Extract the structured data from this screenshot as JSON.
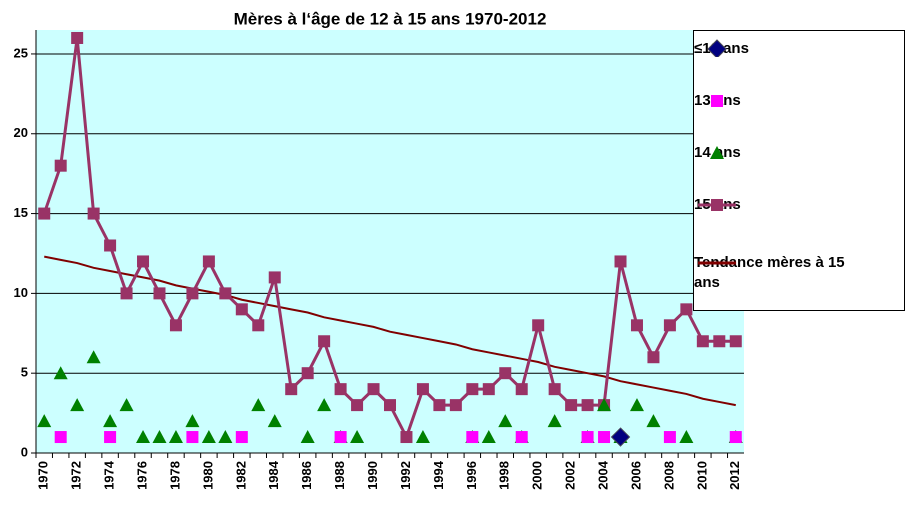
{
  "chart_data": {
    "type": "line",
    "title": "Mères à l‘âge de 12 à 15 ans 1970-2012",
    "categories": [
      "1970",
      null,
      "1972",
      null,
      "1974",
      null,
      "1976",
      null,
      "1978",
      null,
      "1980",
      null,
      "1982",
      null,
      "1984",
      null,
      "1986",
      null,
      "1988",
      null,
      "1990",
      null,
      "1992",
      null,
      "1994",
      null,
      "1996",
      null,
      "1998",
      null,
      "2000",
      null,
      "2002",
      null,
      "2004",
      null,
      "2006",
      null,
      "2008",
      null,
      "2010",
      null,
      "2012"
    ],
    "ylim": [
      0,
      26.5
    ],
    "yticks": [
      0,
      5,
      10,
      15,
      20,
      25
    ],
    "grid": true,
    "background": "#ccffff",
    "legend": "right",
    "series": [
      {
        "name": "≤12 ans",
        "color": "#000080",
        "marker": "diamond",
        "line": false,
        "values": [
          null,
          null,
          null,
          null,
          null,
          null,
          null,
          null,
          null,
          null,
          null,
          null,
          null,
          null,
          null,
          null,
          null,
          null,
          null,
          null,
          null,
          null,
          null,
          null,
          null,
          null,
          null,
          null,
          null,
          null,
          null,
          null,
          null,
          null,
          null,
          1,
          null,
          null,
          null,
          null,
          null,
          null,
          null
        ]
      },
      {
        "name": "13 ans",
        "color": "#ff00ff",
        "marker": "square",
        "line": false,
        "values": [
          null,
          1,
          null,
          null,
          1,
          null,
          null,
          null,
          null,
          1,
          null,
          null,
          1,
          null,
          null,
          null,
          null,
          null,
          1,
          null,
          null,
          null,
          null,
          null,
          null,
          null,
          1,
          null,
          null,
          1,
          null,
          null,
          null,
          1,
          1,
          null,
          null,
          null,
          1,
          null,
          null,
          null,
          1
        ]
      },
      {
        "name": "14 ans",
        "color": "#008000",
        "marker": "triangle",
        "line": false,
        "values": [
          2,
          5,
          3,
          6,
          2,
          3,
          1,
          1,
          1,
          2,
          1,
          1,
          null,
          3,
          2,
          null,
          1,
          3,
          1,
          1,
          null,
          null,
          null,
          1,
          null,
          null,
          1,
          1,
          2,
          1,
          null,
          2,
          null,
          1,
          3,
          1,
          3,
          2,
          null,
          1,
          null,
          null,
          1
        ]
      },
      {
        "name": "15 ans",
        "color": "#993366",
        "marker": "square",
        "line": true,
        "values": [
          15,
          18,
          26,
          15,
          13,
          10,
          12,
          10,
          8,
          10,
          12,
          10,
          9,
          8,
          11,
          4,
          5,
          7,
          4,
          3,
          4,
          3,
          1,
          4,
          3,
          3,
          4,
          4,
          5,
          4,
          8,
          4,
          3,
          3,
          3,
          12,
          8,
          6,
          8,
          9,
          7,
          7,
          7
        ]
      },
      {
        "name": "Tendance mères à 15 ans",
        "color": "#800000",
        "marker": null,
        "line": true,
        "values": [
          12.3,
          12.1,
          11.9,
          11.6,
          11.4,
          11.2,
          11.0,
          10.8,
          10.5,
          10.3,
          10.1,
          9.9,
          9.6,
          9.4,
          9.2,
          9.0,
          8.8,
          8.5,
          8.3,
          8.1,
          7.9,
          7.6,
          7.4,
          7.2,
          7.0,
          6.8,
          6.5,
          6.3,
          6.1,
          5.9,
          5.7,
          5.4,
          5.2,
          5.0,
          4.8,
          4.5,
          4.3,
          4.1,
          3.9,
          3.7,
          3.4,
          3.2,
          3.0
        ]
      }
    ]
  }
}
